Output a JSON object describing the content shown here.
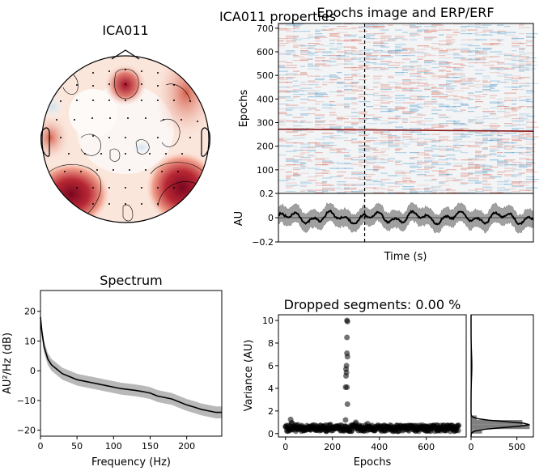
{
  "figure": {
    "suptitle": "ICA011 properties"
  },
  "chart_data": [
    {
      "type": "heatmap",
      "subtype": "topomap",
      "title": "ICA011",
      "colormap": "RdBu_r",
      "colors": {
        "positive": "#8b0a1f",
        "mid": "#f7f7f7",
        "negative": "#4f8fc4"
      }
    },
    {
      "type": "heatmap",
      "title": "Epochs image and ERP/ERF",
      "ylabel": "Epochs",
      "yticks": [
        100,
        200,
        300,
        400,
        500,
        600,
        700
      ],
      "ylim": [
        0,
        720
      ],
      "highlight_epoch": 272,
      "event_line_x": 230,
      "xlim": [
        0,
        680
      ]
    },
    {
      "type": "line",
      "title": "",
      "xlabel": "Time (s)",
      "ylabel": "AU",
      "yticks": [
        -0.2,
        0.0,
        0.2
      ],
      "ylim": [
        -0.2,
        0.2
      ],
      "xlim": [
        0,
        680
      ],
      "event_line_x": 230,
      "colors": {
        "line": "#000000",
        "band": "#a0a0a0"
      }
    },
    {
      "type": "line",
      "title": "Spectrum",
      "xlabel": "Frequency (Hz)",
      "ylabel": "AU²/Hz (dB)",
      "xticks": [
        0,
        50,
        100,
        150,
        200
      ],
      "yticks": [
        -20,
        -10,
        0,
        10,
        20
      ],
      "xlim": [
        0,
        248
      ],
      "ylim": [
        -22,
        27
      ],
      "x": [
        0,
        2,
        5,
        10,
        15,
        20,
        30,
        40,
        50,
        60,
        70,
        80,
        90,
        100,
        110,
        120,
        130,
        140,
        150,
        160,
        170,
        180,
        190,
        200,
        210,
        220,
        230,
        240,
        248
      ],
      "y": [
        18,
        13,
        8,
        4,
        2,
        1,
        -1,
        -2,
        -3,
        -3.5,
        -4,
        -4.5,
        -5,
        -5.5,
        -6,
        -6.3,
        -6.6,
        -7,
        -7.5,
        -8.5,
        -9,
        -9.5,
        -10.5,
        -11.5,
        -12.2,
        -13,
        -13.5,
        -14,
        -14
      ],
      "band": 2.0,
      "colors": {
        "line": "#000000",
        "band": "#b0b0b0"
      }
    },
    {
      "type": "scatter",
      "title": "Dropped segments: 0.00 %",
      "xlabel": "Epochs",
      "ylabel": "Variance (AU)",
      "xticks": [
        0,
        200,
        400,
        600
      ],
      "yticks": [
        0,
        2,
        4,
        6,
        8,
        10
      ],
      "xlim": [
        -30,
        770
      ],
      "ylim": [
        -0.3,
        10.5
      ],
      "n_epochs": 740,
      "outliers": [
        {
          "x": 262,
          "y": 10.0
        },
        {
          "x": 264,
          "y": 9.9
        },
        {
          "x": 262,
          "y": 8.5
        },
        {
          "x": 262,
          "y": 7.1
        },
        {
          "x": 264,
          "y": 6.8
        },
        {
          "x": 260,
          "y": 6.0
        },
        {
          "x": 258,
          "y": 5.7
        },
        {
          "x": 260,
          "y": 5.4
        },
        {
          "x": 258,
          "y": 5.1
        },
        {
          "x": 262,
          "y": 4.1
        },
        {
          "x": 256,
          "y": 4.1
        },
        {
          "x": 264,
          "y": 2.6
        },
        {
          "x": 256,
          "y": 1.2
        },
        {
          "x": 22,
          "y": 1.25
        },
        {
          "x": 300,
          "y": 1.0
        }
      ],
      "colors": {
        "points": "#000000"
      }
    },
    {
      "type": "bar",
      "orientation": "horizontal",
      "title": "",
      "xticks": [
        0,
        500
      ],
      "xlim": [
        0,
        680
      ],
      "ylim": [
        -0.3,
        10.5
      ],
      "bins": [
        0.2,
        0.6,
        1.0,
        1.4
      ],
      "counts": [
        120,
        640,
        560,
        60
      ],
      "colors": {
        "bars": "#808080",
        "kde": "#000000"
      }
    }
  ]
}
